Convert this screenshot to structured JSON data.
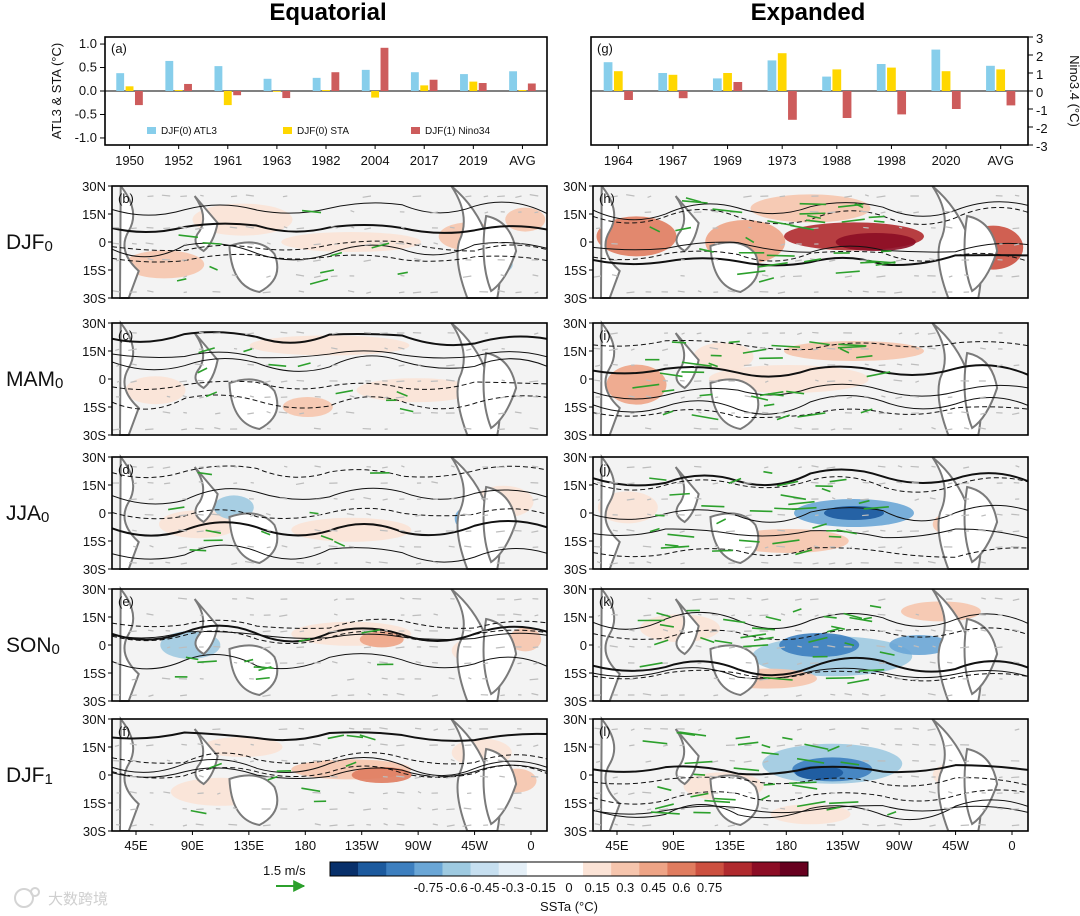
{
  "titles": {
    "left": "Equatorial",
    "right": "Expanded"
  },
  "chart_data": [
    {
      "type": "bar",
      "panel": "(a)",
      "categories": [
        "1950",
        "1952",
        "1961",
        "1963",
        "1982",
        "2004",
        "2017",
        "2019",
        "AVG"
      ],
      "ylabel": "ATL3 & STA (°C)",
      "ylim": [
        -1.15,
        1.15
      ],
      "yticks": [
        "1.0",
        "0.5",
        "0.0",
        "-0.5",
        "-1.0"
      ],
      "ytick_values": [
        1.0,
        0.5,
        0.0,
        -0.5,
        -1.0
      ],
      "legend_position": "bottom",
      "series": [
        {
          "name": "DJF(0) ATL3",
          "color": "#87ceeb",
          "values": [
            0.38,
            0.64,
            0.53,
            0.26,
            0.28,
            0.45,
            0.4,
            0.36,
            0.42
          ]
        },
        {
          "name": "DJF(0) STA",
          "color": "#ffd700",
          "values": [
            0.1,
            0.02,
            -0.3,
            0.0,
            0.02,
            -0.14,
            0.12,
            0.2,
            0.02
          ]
        },
        {
          "name": "DJF(1) Nino34",
          "color": "#cd5c5c",
          "values": [
            -0.3,
            0.15,
            -0.09,
            -0.15,
            0.4,
            0.92,
            0.24,
            0.17,
            0.16
          ]
        }
      ]
    },
    {
      "type": "bar",
      "panel": "(g)",
      "categories": [
        "1964",
        "1967",
        "1969",
        "1973",
        "1988",
        "1998",
        "2020",
        "AVG"
      ],
      "ylabel": "Nino3.4 (°C)",
      "ylim": [
        -3,
        3
      ],
      "yticks": [
        "3",
        "2",
        "1",
        "0",
        "-1",
        "-2",
        "-3"
      ],
      "ytick_values": [
        3,
        2,
        1,
        0,
        -1,
        -2,
        -3
      ],
      "series": [
        {
          "name": "DJF(0) ATL3",
          "color": "#87ceeb",
          "values": [
            1.6,
            1.0,
            0.7,
            1.7,
            0.8,
            1.5,
            2.3,
            1.4
          ]
        },
        {
          "name": "DJF(0) STA",
          "color": "#ffd700",
          "values": [
            1.1,
            0.9,
            1.0,
            2.1,
            1.2,
            1.3,
            1.1,
            1.2
          ]
        },
        {
          "name": "DJF(1) Nino34",
          "color": "#cd5c5c",
          "values": [
            -0.5,
            -0.4,
            0.5,
            -1.6,
            -1.5,
            -1.3,
            -1.0,
            -0.8
          ]
        }
      ]
    },
    {
      "type": "heatmap",
      "description_panels": [
        "(b)",
        "(c)",
        "(d)",
        "(e)",
        "(f)",
        "(h)",
        "(i)",
        "(j)",
        "(k)",
        "(l)"
      ],
      "seasons": [
        "DJF",
        "MAM",
        "JJA",
        "SON",
        "DJF"
      ],
      "season_subscripts": [
        "0",
        "0",
        "0",
        "0",
        "1"
      ],
      "lat_ticks": [
        "30N",
        "15N",
        "0",
        "15S",
        "30S"
      ],
      "lon_ticks": [
        "45E",
        "90E",
        "135E",
        "180",
        "135W",
        "90W",
        "45W",
        "0"
      ],
      "colorbar": {
        "label": "SSTa (°C)",
        "ticks": [
          "-0.75",
          "-0.6",
          "-0.45",
          "-0.3",
          "-0.15",
          "0",
          "0.15",
          "0.3",
          "0.45",
          "0.6",
          "0.75"
        ],
        "colors": [
          "#08306b",
          "#1c5a9e",
          "#3d7fbf",
          "#6aa6d6",
          "#9ecae1",
          "#c6dff0",
          "#e4eff7",
          "#ffffff",
          "#ffffff",
          "#fbe3d6",
          "#f6c5ad",
          "#eea486",
          "#e07c5f",
          "#cc5040",
          "#b02a2e",
          "#8c0d25",
          "#67001f"
        ]
      },
      "reference_vector": {
        "label": "1.5 m/s",
        "color": "#2ca02c"
      }
    }
  ],
  "left_panels": [
    {
      "tag": "(b)",
      "season": "DJF",
      "sub": "0"
    },
    {
      "tag": "(c)",
      "season": "MAM",
      "sub": "0"
    },
    {
      "tag": "(d)",
      "season": "JJA",
      "sub": "0"
    },
    {
      "tag": "(e)",
      "season": "SON",
      "sub": "0"
    },
    {
      "tag": "(f)",
      "season": "DJF",
      "sub": "1"
    }
  ],
  "right_panels": [
    {
      "tag": "(h)"
    },
    {
      "tag": "(i)"
    },
    {
      "tag": "(j)"
    },
    {
      "tag": "(k)"
    },
    {
      "tag": "(l)"
    }
  ],
  "watermark": "大数跨境"
}
